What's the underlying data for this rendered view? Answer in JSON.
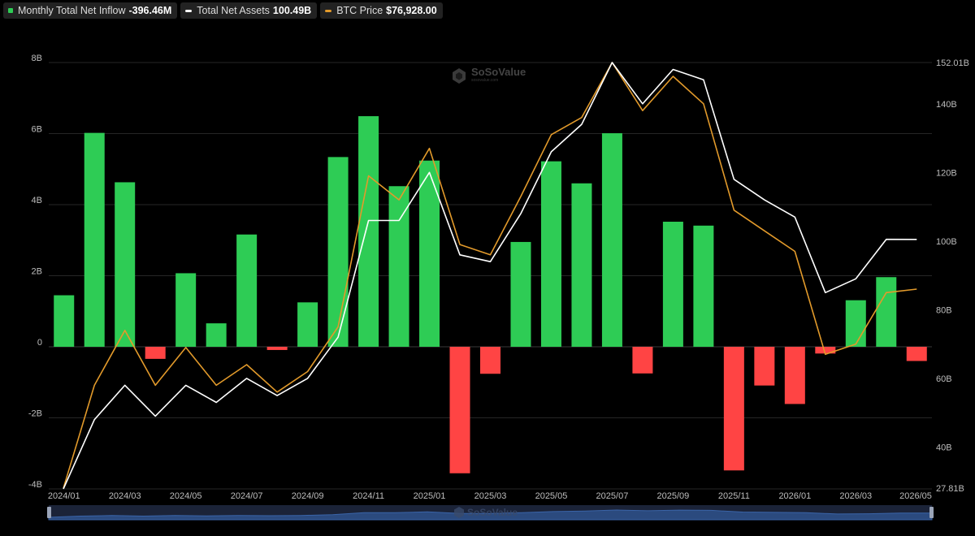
{
  "legend": [
    {
      "label": "Monthly Total Net Inflow",
      "value": "-396.46M",
      "color": "#2ecc55",
      "kind": "bar"
    },
    {
      "label": "Total Net Assets",
      "value": "100.49B",
      "color": "#ffffff",
      "kind": "line"
    },
    {
      "label": "BTC Price",
      "value": "$76,928.00",
      "color": "#e29a2b",
      "kind": "line"
    }
  ],
  "watermark": {
    "brand": "SoSoValue",
    "sub": "sosovalue.com"
  },
  "chart_data": {
    "type": "bar",
    "categories": [
      "2024/01",
      "2024/02",
      "2024/03",
      "2024/04",
      "2024/05",
      "2024/06",
      "2024/07",
      "2024/08",
      "2024/09",
      "2024/10",
      "2024/11",
      "2024/12",
      "2025/01",
      "2025/02",
      "2025/03",
      "2025/04",
      "2025/05",
      "2025/06",
      "2025/07",
      "2025/08",
      "2025/09",
      "2025/10",
      "2025/11",
      "2025/12",
      "2026/01",
      "2026/02",
      "2026/03",
      "2026/04",
      "2026/05"
    ],
    "x_tick_labels": [
      "2024/01",
      "2024/03",
      "2024/05",
      "2024/07",
      "2024/09",
      "2024/11",
      "2025/01",
      "2025/03",
      "2025/05",
      "2025/07",
      "2025/09",
      "2025/11",
      "2026/01",
      "2026/03",
      "2026/05"
    ],
    "left_axis": {
      "ticks": [
        "8B",
        "6B",
        "4B",
        "2B",
        "0",
        "-2B",
        "-4B"
      ],
      "tick_values": [
        8,
        6,
        4,
        2,
        0,
        -2,
        -4
      ],
      "range": [
        -4,
        8
      ],
      "unit": "B"
    },
    "right_axis": {
      "ticks": [
        "152.01B",
        "140B",
        "120B",
        "100B",
        "80B",
        "60B",
        "40B",
        "27.81B"
      ],
      "tick_values": [
        152.01,
        140,
        120,
        100,
        80,
        60,
        40,
        27.81
      ],
      "range": [
        27.81,
        152.01
      ],
      "unit": "B"
    },
    "positive_color": "#2ecc55",
    "negative_color": "#ff4444",
    "series": [
      {
        "name": "Monthly Total Net Inflow",
        "axis": "left",
        "kind": "bar",
        "values": [
          1.45,
          6.02,
          4.63,
          -0.34,
          2.07,
          0.66,
          3.16,
          -0.09,
          1.25,
          5.34,
          6.49,
          4.52,
          5.24,
          -3.56,
          -0.76,
          2.95,
          5.22,
          4.6,
          6.01,
          -0.75,
          3.52,
          3.41,
          -3.48,
          -1.09,
          -1.61,
          -0.19,
          1.31,
          1.96,
          -0.4
        ]
      },
      {
        "name": "Total Net Assets",
        "axis": "right",
        "kind": "line",
        "color": "#ffffff",
        "values": [
          27.81,
          48,
          58,
          49,
          58,
          53,
          60,
          55,
          60,
          72,
          106,
          106,
          120,
          96,
          94,
          108,
          126,
          134,
          152,
          140,
          150,
          147,
          118,
          112,
          107,
          85,
          89,
          100.5,
          100.49
        ]
      },
      {
        "name": "BTC Price",
        "axis": "right",
        "kind": "line",
        "color": "#e29a2b",
        "values": [
          28,
          58,
          74,
          58,
          69,
          58,
          64,
          56,
          62,
          75,
          119,
          112,
          127,
          99,
          96,
          113,
          131,
          136,
          152,
          138,
          148,
          140,
          109,
          103,
          97,
          67,
          70,
          85,
          86
        ]
      }
    ]
  }
}
